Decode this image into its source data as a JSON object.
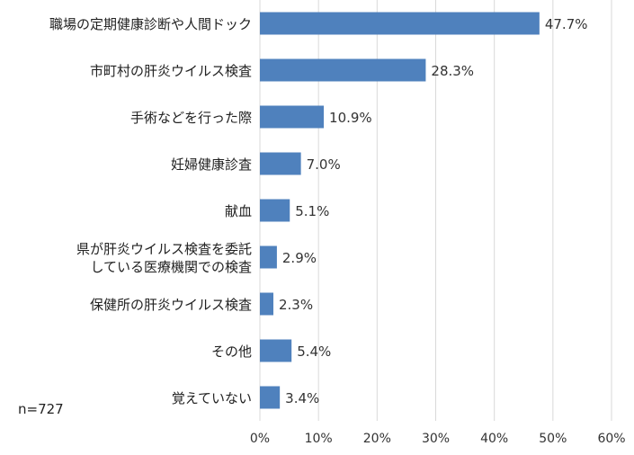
{
  "chart_data": {
    "type": "bar",
    "orientation": "horizontal",
    "categories": [
      [
        "職場の定期健康診断や人間ドック"
      ],
      [
        "市町村の肝炎ウイルス検査"
      ],
      [
        "手術などを行った際"
      ],
      [
        "妊婦健康診査"
      ],
      [
        "献血"
      ],
      [
        "県が肝炎ウイルス検査を委託",
        "している医療機関での検査"
      ],
      [
        "保健所の肝炎ウイルス検査"
      ],
      [
        "その他"
      ],
      [
        "覚えていない"
      ]
    ],
    "values": [
      47.7,
      28.3,
      10.9,
      7.0,
      5.1,
      2.9,
      2.3,
      5.4,
      3.4
    ],
    "value_labels": [
      "47.7%",
      "28.3%",
      "10.9%",
      "7.0%",
      "5.1%",
      "2.9%",
      "2.3%",
      "5.4%",
      "3.4%"
    ],
    "x_ticks": [
      0,
      10,
      20,
      30,
      40,
      50,
      60
    ],
    "x_tick_labels": [
      "0%",
      "10%",
      "20%",
      "30%",
      "40%",
      "50%",
      "60%"
    ],
    "xlim": [
      0,
      60
    ],
    "grid": "vertical",
    "bar_color": "#4f81bd",
    "note": "n=727"
  }
}
